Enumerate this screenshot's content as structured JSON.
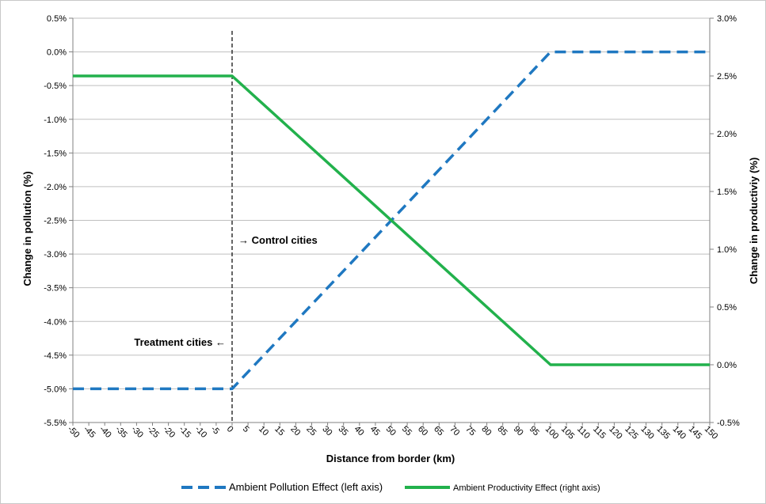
{
  "chart_data": {
    "type": "line",
    "title": "",
    "xlabel": "Distance from border (km)",
    "ylabel_left": "Change in pollution (%)",
    "ylabel_right": "Change in productiviy (%)",
    "x_ticks": [
      "-50",
      "-45",
      "-40",
      "-35",
      "-30",
      "-25",
      "-20",
      "-15",
      "-10",
      "-5",
      "0",
      "5",
      "10",
      "15",
      "20",
      "25",
      "30",
      "35",
      "40",
      "45",
      "50",
      "55",
      "60",
      "65",
      "70",
      "75",
      "80",
      "85",
      "90",
      "95",
      "100",
      "105",
      "110",
      "115",
      "120",
      "125",
      "130",
      "135",
      "140",
      "145",
      "150"
    ],
    "x_range": [
      -50,
      150
    ],
    "y_left_range": [
      -5.5,
      0.5
    ],
    "y_left_ticks": [
      "0.5%",
      "0.0%",
      "-0.5%",
      "-1.0%",
      "-1.5%",
      "-2.0%",
      "-2.5%",
      "-3.0%",
      "-3.5%",
      "-4.0%",
      "-4.5%",
      "-5.0%",
      "-5.5%"
    ],
    "y_right_range": [
      -0.5,
      3.0
    ],
    "y_right_ticks": [
      "3.0%",
      "2.5%",
      "2.0%",
      "1.5%",
      "1.0%",
      "0.5%",
      "0.0%",
      "-0.5%"
    ],
    "grid": "horizontal",
    "legend_position": "bottom",
    "series": [
      {
        "name": "Ambient Pollution Effect (left axis)",
        "axis": "left",
        "color": "#1f78c1",
        "style": "dashed",
        "x": [
          -50,
          0,
          100,
          150
        ],
        "y": [
          -5.0,
          -5.0,
          0.0,
          0.0
        ]
      },
      {
        "name": "Ambient Productivity Effect (right axis)",
        "axis": "right",
        "color": "#22b14c",
        "style": "solid",
        "x": [
          -50,
          0,
          100,
          150
        ],
        "y": [
          2.5,
          2.5,
          0.0,
          0.0
        ]
      }
    ],
    "annotations": [
      {
        "text": "→ Control cities",
        "x": 0
      },
      {
        "text": "Treatment cities ←",
        "x": 0
      }
    ],
    "reference_line_x": 0
  }
}
